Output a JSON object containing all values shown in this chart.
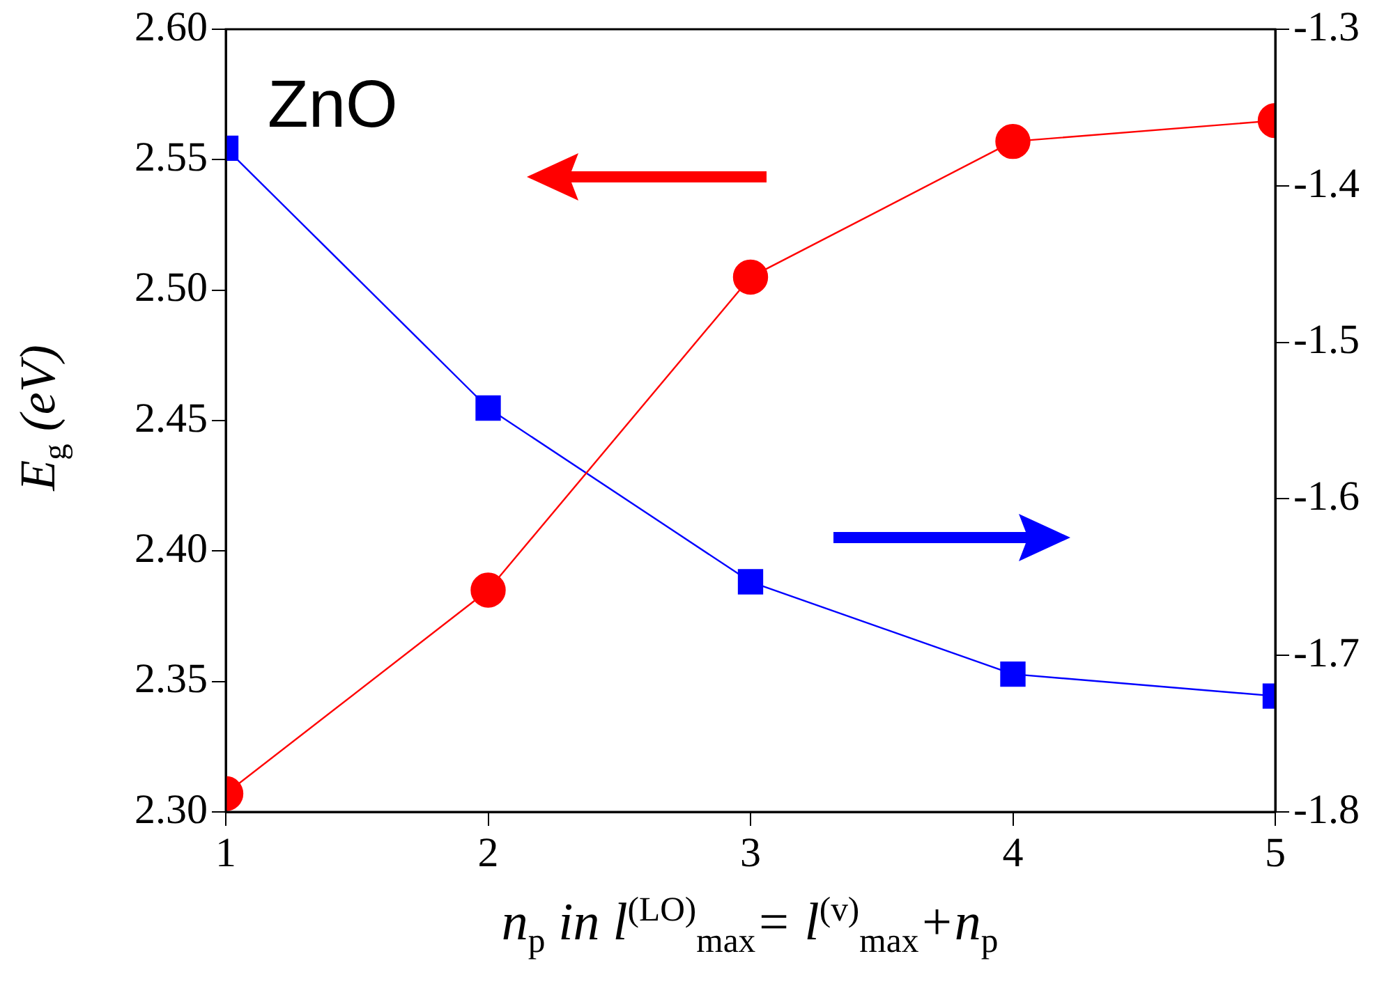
{
  "chart_data": {
    "type": "line",
    "title": "ZnO",
    "xlabel": "n$_{p}$ in l$^{(LO)}$$_{max}$= l$^{(v)}$$_{max}$+n$_{p}$",
    "ylabel": "E$_{g}$ (eV)",
    "x": [
      1,
      2,
      3,
      4,
      5
    ],
    "series": [
      {
        "color": "#ff0000",
        "marker": "circle",
        "values": [
          2.307,
          2.385,
          2.505,
          2.557,
          2.565
        ]
      },
      {
        "color": "#0000ff",
        "marker": "square",
        "axis": "y2",
        "values": [
          -1.376,
          -1.542,
          -1.653,
          -1.712,
          -1.726
        ]
      }
    ],
    "xlim": [
      1,
      5
    ],
    "xticks": [
      1,
      2,
      3,
      4,
      5
    ],
    "ylim": [
      2.3,
      2.6
    ],
    "yticks": [
      {
        "value": 2.3,
        "label": "2.30"
      },
      {
        "value": 2.35,
        "label": "2.35"
      },
      {
        "value": 2.4,
        "label": "2.40"
      },
      {
        "value": 2.45,
        "label": "2.45"
      },
      {
        "value": 2.5,
        "label": "2.50"
      },
      {
        "value": 2.55,
        "label": "2.55"
      },
      {
        "value": 2.6,
        "label": "2.60"
      }
    ],
    "y2lim": [
      -1.8,
      -1.3
    ],
    "y2ticks": [
      -1.8,
      -1.7,
      -1.6,
      -1.5,
      -1.4,
      -1.3
    ],
    "grid": false,
    "legend": false,
    "line_style": "solid"
  }
}
